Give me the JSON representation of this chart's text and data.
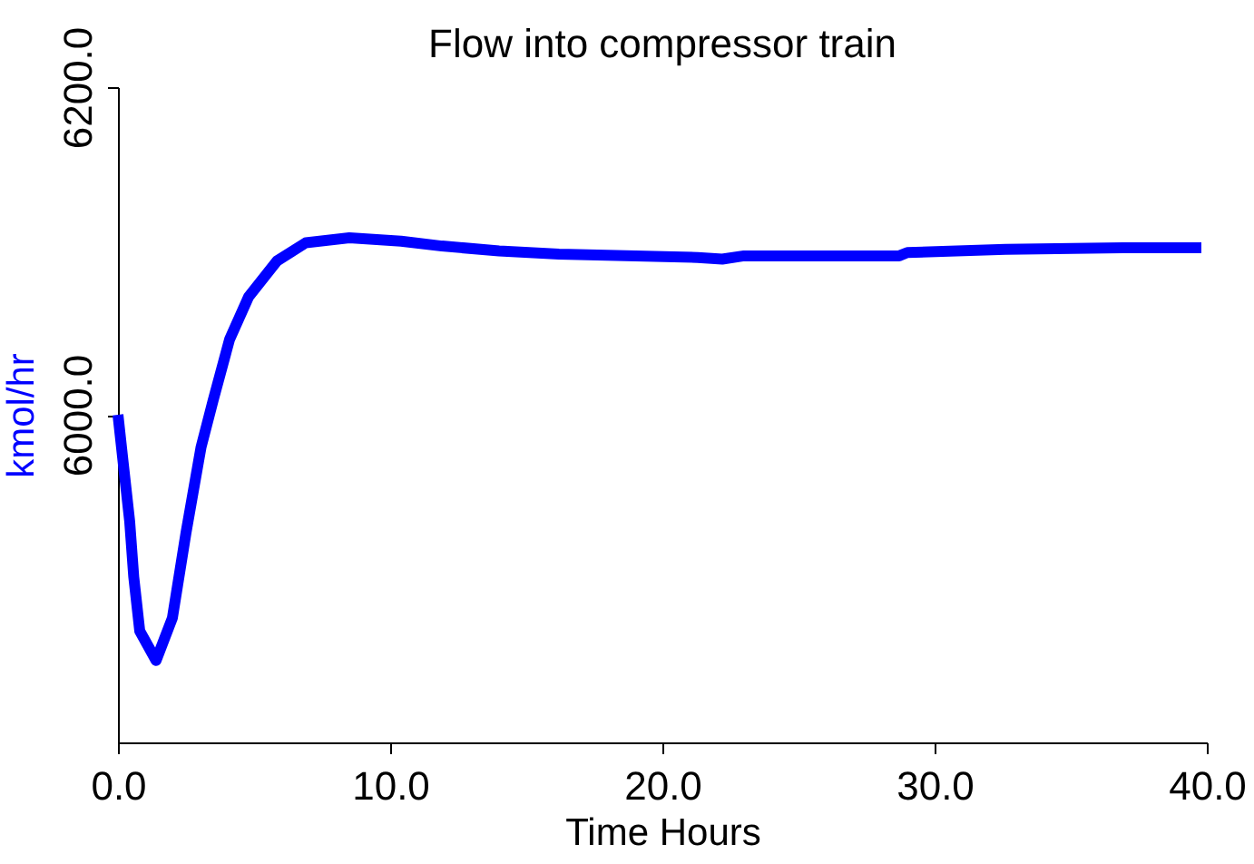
{
  "chart_data": {
    "type": "line",
    "title": "Flow into compressor train",
    "xlabel": "Time Hours",
    "ylabel": "kmol/hr",
    "x": [
      0,
      0.21,
      0.43,
      0.58,
      0.8,
      1.4,
      2.0,
      2.5,
      3.05,
      3.5,
      4.1,
      4.8,
      5.85,
      6.9,
      8.5,
      10.4,
      11.9,
      14.0,
      16.2,
      21.3,
      22.2,
      23.0,
      28.7,
      29.0,
      32.6,
      36.9,
      39.8
    ],
    "series": [
      {
        "color": "#0000ff",
        "values": [
          6000,
          5968,
          5935,
          5901,
          5868,
          5850,
          5876,
          5928,
          5980,
          6009,
          6046,
          6072,
          6094,
          6105,
          6108,
          6106,
          6103,
          6100,
          6098,
          6096,
          6095,
          6097,
          6097,
          6099,
          6101,
          6102,
          6102
        ]
      }
    ],
    "xlim": [
      0,
      40
    ],
    "xticks": [
      {
        "value": 0,
        "label": "0.0"
      },
      {
        "value": 10,
        "label": "10.0"
      },
      {
        "value": 20,
        "label": "20.0"
      },
      {
        "value": 30,
        "label": "30.0"
      },
      {
        "value": 40,
        "label": "40.0"
      }
    ],
    "ylim": [
      5800,
      6200
    ],
    "yticks": [
      {
        "value": 6000,
        "label": "6000.0"
      },
      {
        "value": 6200,
        "label": "6200.0"
      }
    ],
    "grid": false,
    "legend": false,
    "marker": "none",
    "line_style": "solid"
  }
}
